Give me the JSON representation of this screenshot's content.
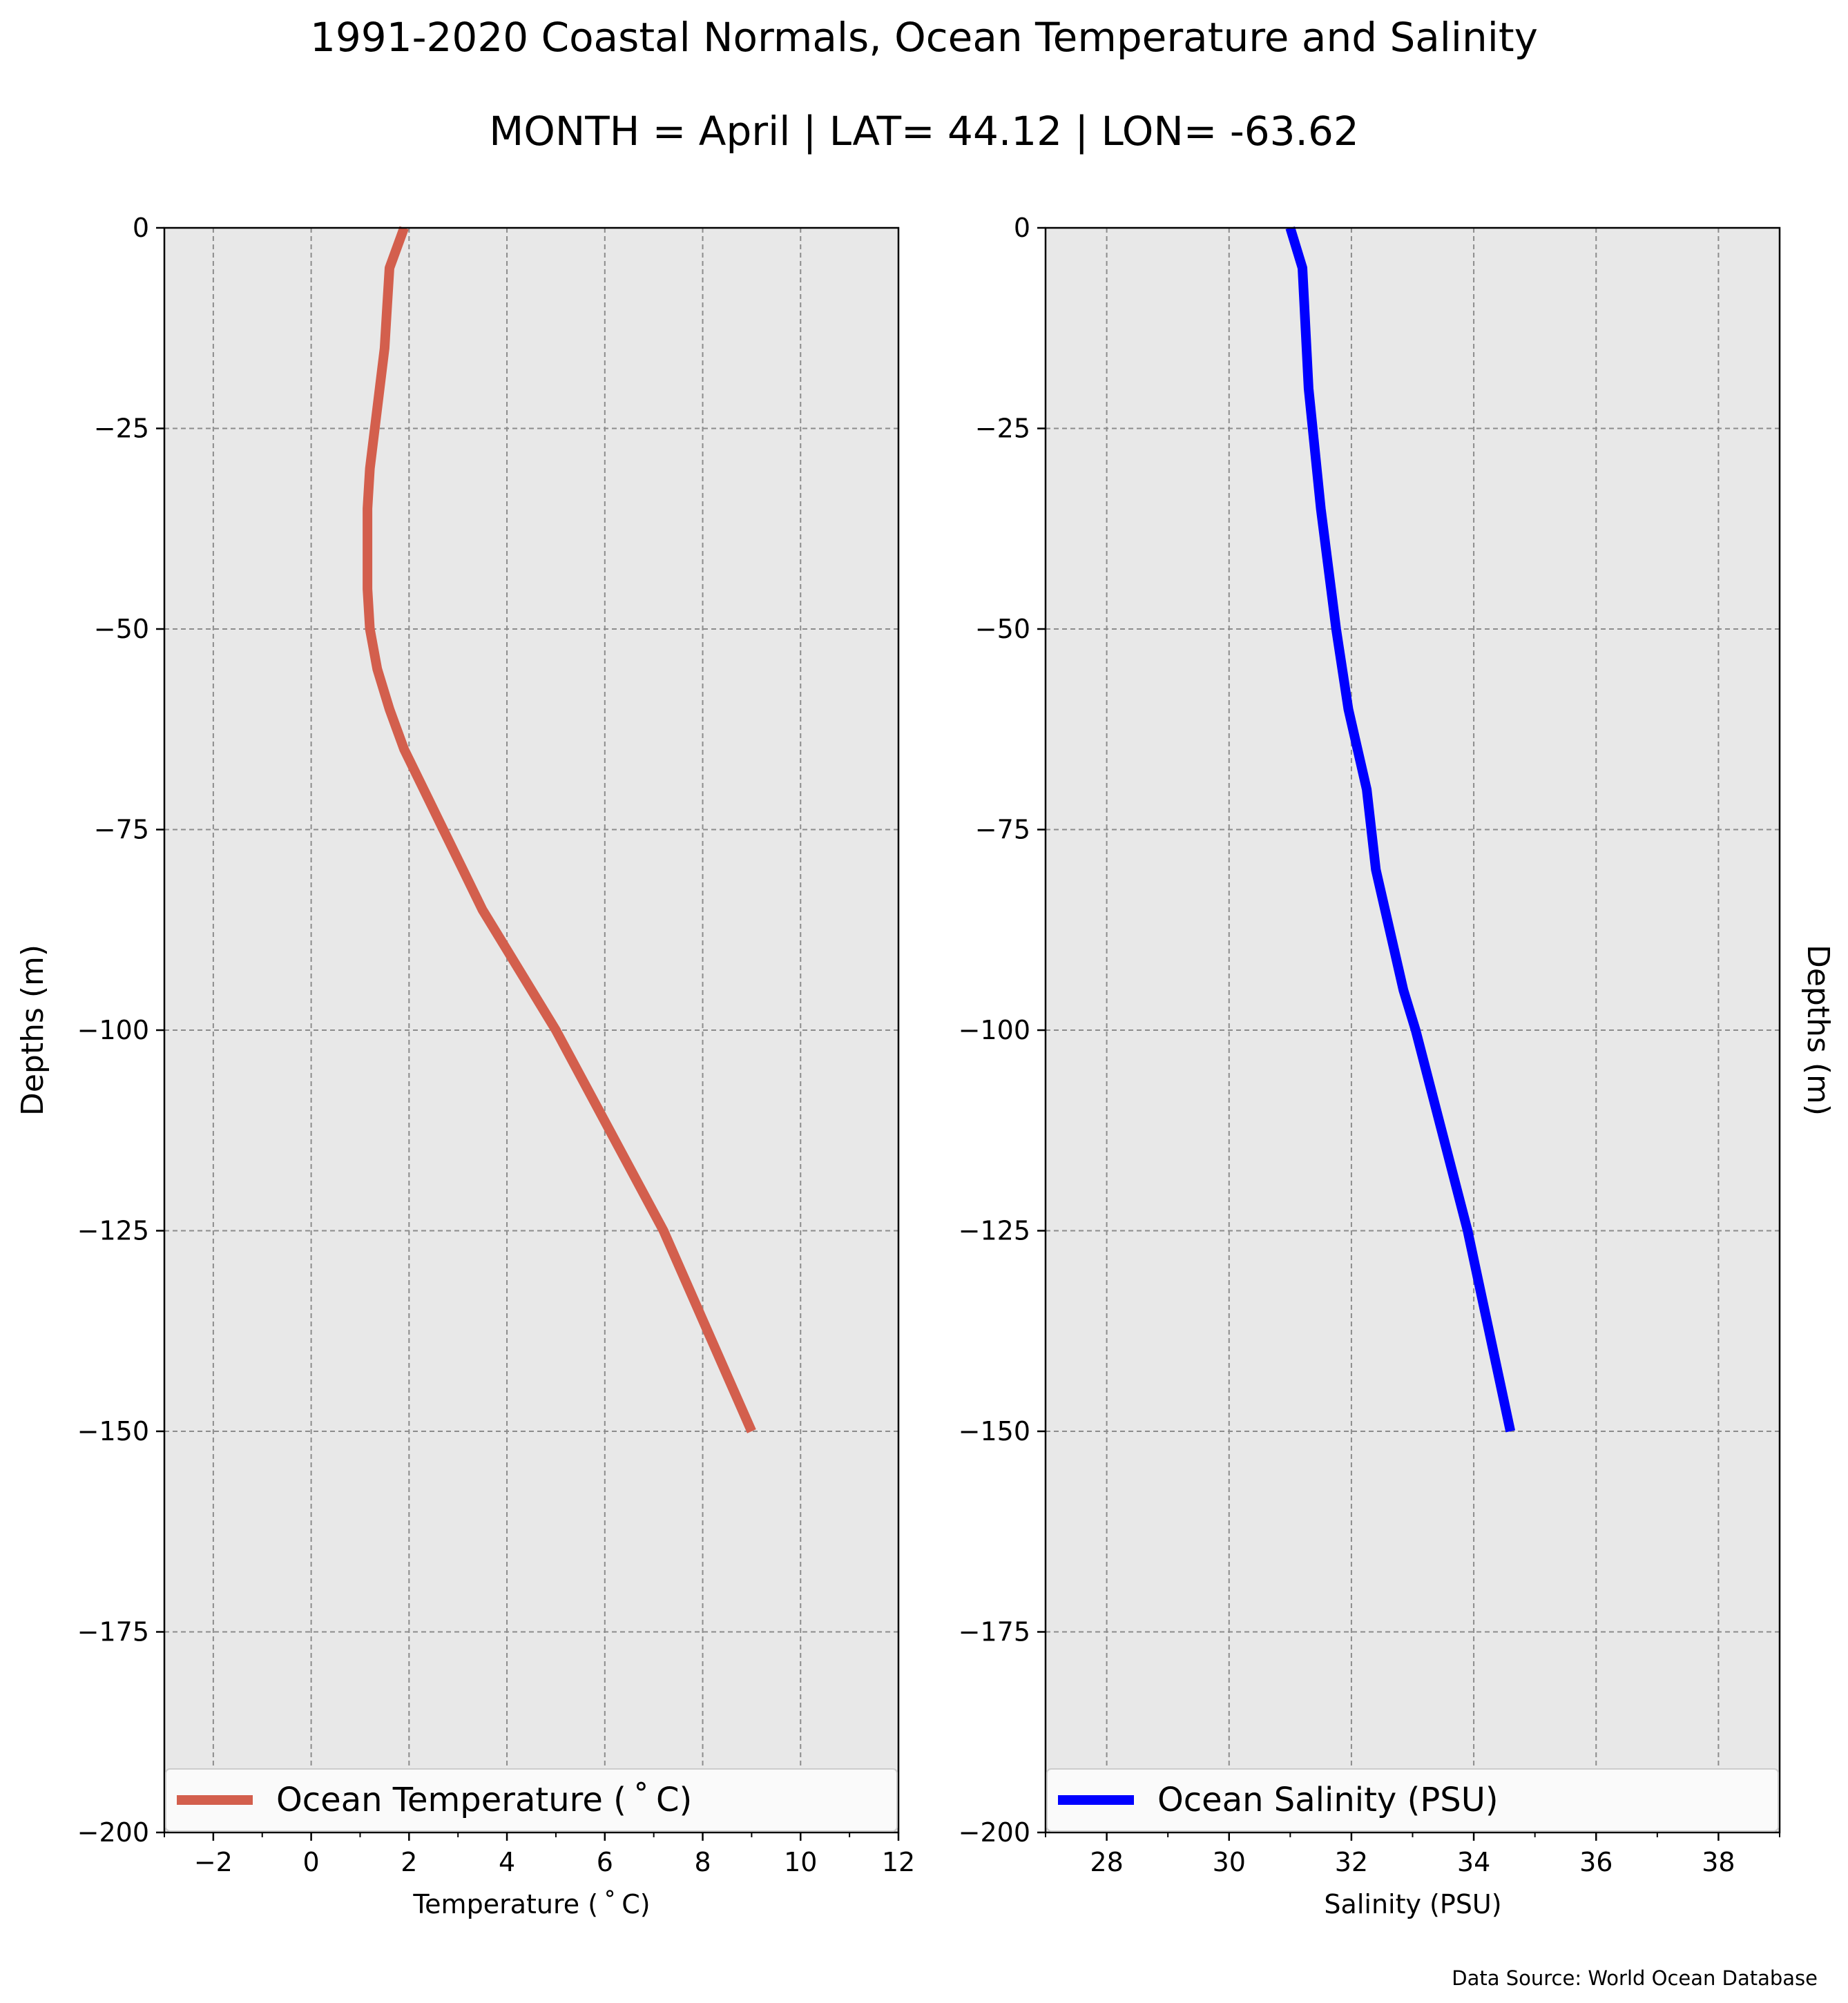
{
  "title_line1": "1991-2020 Coastal Normals, Ocean Temperature and Salinity",
  "title_line2": "MONTH = April | LAT= 44.12 | LON= -63.62",
  "source": "Data Source: World Ocean Database",
  "chart_data": [
    {
      "type": "line",
      "xlabel": "Temperature ($^\\circ$C)",
      "xlabel_display": "Temperature ( ˚ C)",
      "ylabel": "Depths (m)",
      "xlim": [
        -3,
        12
      ],
      "ylim": [
        -200,
        0
      ],
      "xticks": [
        -2,
        0,
        2,
        4,
        6,
        8,
        10,
        12
      ],
      "xtick_labels": [
        "−2",
        "0",
        "2",
        "4",
        "6",
        "8",
        "10",
        "12"
      ],
      "yticks": [
        0,
        -25,
        -50,
        -75,
        -100,
        -125,
        -150,
        -175,
        -200
      ],
      "ytick_labels": [
        "0",
        "−25",
        "−50",
        "−75",
        "−100",
        "−125",
        "−150",
        "−175",
        "−200"
      ],
      "grid": true,
      "legend_position": "lower-center",
      "color": "#d35f4d",
      "series": [
        {
          "name": "Ocean Temperature ( ˚ C)",
          "depth": [
            0,
            -5,
            -10,
            -15,
            -20,
            -25,
            -30,
            -35,
            -40,
            -45,
            -50,
            -55,
            -60,
            -65,
            -70,
            -75,
            -80,
            -85,
            -90,
            -95,
            -100,
            -125,
            -150
          ],
          "values": [
            1.9,
            1.6,
            1.55,
            1.5,
            1.4,
            1.3,
            1.2,
            1.15,
            1.15,
            1.15,
            1.2,
            1.35,
            1.6,
            1.9,
            2.3,
            2.7,
            3.1,
            3.5,
            4.0,
            4.5,
            5.0,
            7.2,
            9.0
          ]
        }
      ]
    },
    {
      "type": "line",
      "xlabel": "Salinity (PSU)",
      "ylabel": "Depths (m)",
      "xlim": [
        27,
        39
      ],
      "ylim": [
        -200,
        0
      ],
      "xticks": [
        28,
        30,
        32,
        34,
        36,
        38
      ],
      "xtick_labels": [
        "28",
        "30",
        "32",
        "34",
        "36",
        "38"
      ],
      "yticks": [
        0,
        -25,
        -50,
        -75,
        -100,
        -125,
        -150,
        -175,
        -200
      ],
      "ytick_labels": [
        "0",
        "−25",
        "−50",
        "−75",
        "−100",
        "−125",
        "−150",
        "−175",
        "−200"
      ],
      "grid": true,
      "legend_position": "lower-center",
      "color": "#0000ff",
      "series": [
        {
          "name": "Ocean Salinity (PSU)",
          "depth": [
            0,
            -5,
            -20,
            -35,
            -50,
            -60,
            -70,
            -80,
            -85,
            -95,
            -100,
            -125,
            -150
          ],
          "values": [
            31.0,
            31.2,
            31.3,
            31.5,
            31.75,
            31.95,
            32.25,
            32.4,
            32.55,
            32.85,
            33.05,
            33.9,
            34.6
          ]
        }
      ]
    }
  ]
}
